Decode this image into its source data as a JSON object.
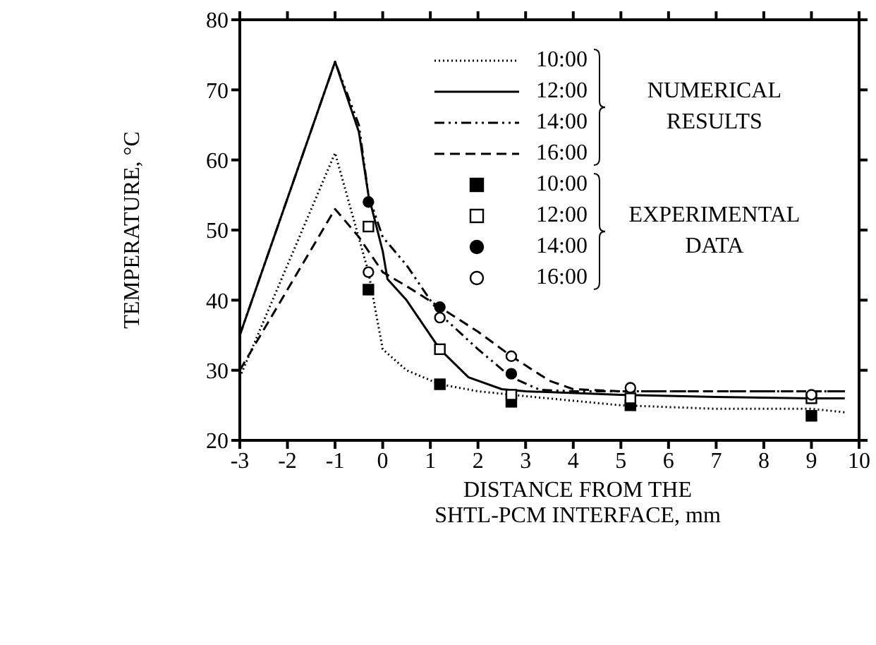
{
  "chart_data": {
    "type": "line",
    "xlabel": "DISTANCE FROM THE SHTL-PCM INTERFACE, mm",
    "ylabel": "TEMPERATURE, °C",
    "xlim": [
      -3,
      10
    ],
    "xticks": [
      -3,
      -2,
      -1,
      0,
      1,
      2,
      3,
      4,
      5,
      6,
      7,
      8,
      9,
      10
    ],
    "ylim": [
      20,
      80
    ],
    "yticks": [
      20,
      30,
      40,
      50,
      60,
      70,
      80
    ],
    "legend": "top",
    "annotations": [
      "NUMERICAL RESULTS",
      "EXPERIMENTAL DATA"
    ],
    "series": [
      {
        "name": "10:00",
        "color": "#000000",
        "line_style": "dotted",
        "x": [
          -3,
          -1,
          -0.3,
          0,
          0.5,
          1.2,
          2,
          3,
          5,
          7,
          9,
          9.7
        ],
        "values": [
          29,
          61,
          44,
          33,
          30,
          28,
          27,
          26.3,
          25,
          24.5,
          24.5,
          24
        ]
      },
      {
        "name": "12:00",
        "color": "#000000",
        "line_style": "solid",
        "x": [
          -3,
          -1,
          -0.5,
          -0.3,
          0,
          0.1,
          0.5,
          1.2,
          1.8,
          2.5,
          3,
          5,
          7,
          9,
          9.7
        ],
        "values": [
          35,
          74,
          64,
          55,
          47,
          43,
          40,
          33,
          29,
          27.3,
          27,
          26.5,
          26.2,
          26,
          26
        ]
      },
      {
        "name": "14:00",
        "color": "#000000",
        "line_style": "dashdot",
        "x": [
          -3,
          -1,
          -0.5,
          -0.3,
          0,
          0.5,
          1.2,
          2,
          2.7,
          3.3,
          4,
          5,
          7,
          9,
          9.7
        ],
        "values": [
          35,
          74,
          65,
          55,
          49,
          45,
          38,
          33,
          29,
          27.2,
          27,
          27,
          27,
          27,
          27
        ]
      },
      {
        "name": "16:00",
        "color": "#000000",
        "line_style": "dashed",
        "x": [
          -3,
          -1,
          -0.5,
          0,
          0.5,
          1.2,
          2,
          2.7,
          3.5,
          4,
          5,
          7,
          9,
          9.7
        ],
        "values": [
          30,
          53,
          49,
          44,
          42,
          39,
          35.5,
          32,
          28.5,
          27.3,
          27,
          27,
          27,
          27
        ]
      },
      {
        "name": "10:00",
        "type": "scatter",
        "color": "#000000",
        "marker": "square",
        "x": [
          -0.3,
          1.2,
          2.7,
          5.2,
          9
        ],
        "values": [
          41.5,
          28,
          25.5,
          25,
          23.5
        ]
      },
      {
        "name": "12:00",
        "type": "scatter",
        "color": "#ffffff",
        "marker": "square",
        "x": [
          -0.3,
          1.2,
          2.7,
          5.2,
          9
        ],
        "values": [
          50.5,
          33,
          26.5,
          26,
          26
        ]
      },
      {
        "name": "14:00",
        "type": "scatter",
        "color": "#000000",
        "marker": "circle",
        "x": [
          -0.3,
          1.2,
          2.7
        ],
        "values": [
          54,
          39,
          29.5
        ]
      },
      {
        "name": "16:00",
        "type": "scatter",
        "color": "#ffffff",
        "marker": "circle",
        "x": [
          -0.3,
          1.2,
          2.7,
          5.2,
          9
        ],
        "values": [
          44,
          37.5,
          32,
          27.5,
          26.5
        ]
      }
    ]
  }
}
